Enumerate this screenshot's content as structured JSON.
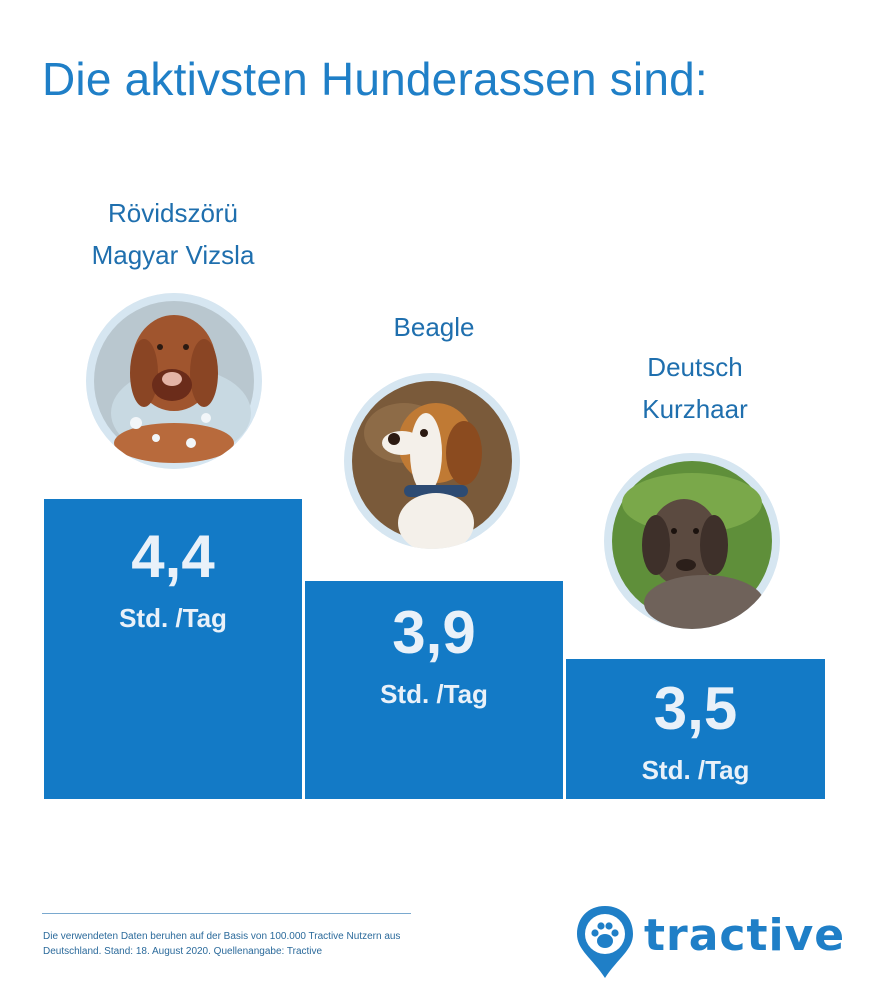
{
  "title": "Die aktivsten Hunderassen sind:",
  "chart_data": {
    "type": "bar",
    "title": "Die aktivsten Hunderassen sind:",
    "categories": [
      "Rövidszörü\nMagyar Vizsla",
      "Beagle",
      "Deutsch\nKurzhaar"
    ],
    "values": [
      4.4,
      3.9,
      3.5
    ],
    "value_labels": [
      "4,4",
      "3,9",
      "3,5"
    ],
    "unit_label": "Std. /Tag",
    "bar_color": "#137ac6",
    "baseline": 0
  },
  "footnote": "Die verwendeten Daten beruhen auf der Basis von 100.000 Tractive Nutzern aus Deutschland. Stand: 18. August 2020. Quellenangabe: Tractive",
  "logo": {
    "text": "tractive",
    "icon": "paw-pin-icon",
    "color": "#1f7fc7"
  },
  "photos": [
    "vizsla-photo",
    "beagle-photo",
    "kurzhaar-photo"
  ]
}
